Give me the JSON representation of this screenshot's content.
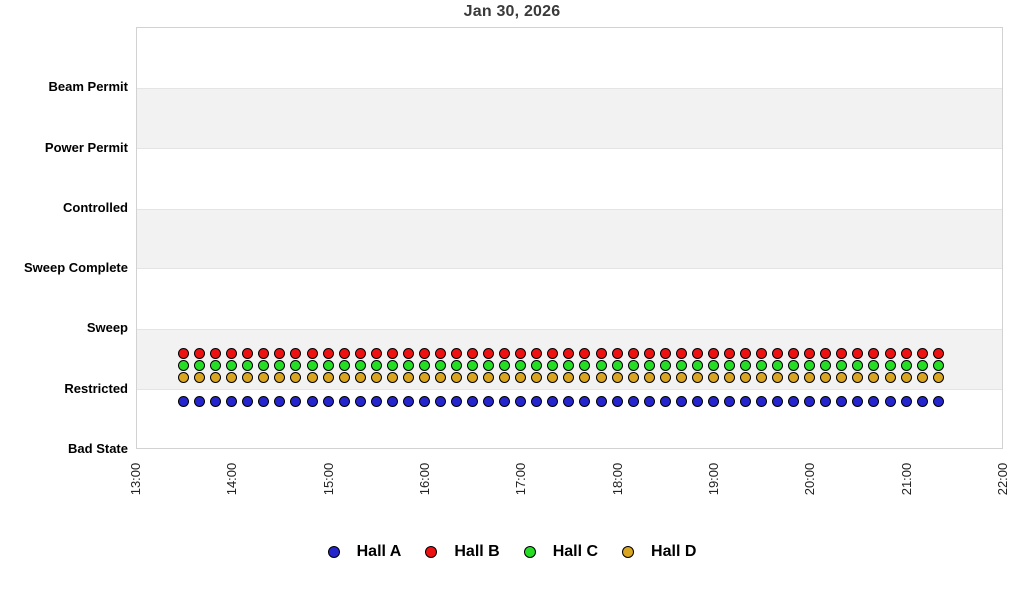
{
  "title": "Jan 30, 2026",
  "chart_data": {
    "type": "scatter",
    "title": "Jan 30, 2026",
    "x_axis": {
      "start": "13:00",
      "end": "22:00",
      "tick_labels": [
        "13:00",
        "14:00",
        "15:00",
        "16:00",
        "17:00",
        "18:00",
        "19:00",
        "20:00",
        "21:00",
        "22:00"
      ],
      "tick_label_rotation_deg": -90,
      "gridlines": false
    },
    "y_axis": {
      "categories": [
        "Bad State",
        "Restricted",
        "Sweep",
        "Sweep Complete",
        "Controlled",
        "Power Permit",
        "Beam Permit"
      ],
      "category_values": [
        0,
        1,
        2,
        3,
        4,
        5,
        6
      ],
      "axis_units_range": [
        0,
        7
      ],
      "shaded_band_value_ranges": [
        [
          1,
          2
        ],
        [
          3,
          4
        ],
        [
          5,
          6
        ]
      ],
      "shaded_band_color": "#f2f2f2"
    },
    "samples": {
      "start_time": "13:29",
      "interval_minutes": 10,
      "count": 48
    },
    "series": [
      {
        "name": "Hall A",
        "color": "#2525cd",
        "state": "Restricted",
        "state_value": 1,
        "plot_offset": -0.2
      },
      {
        "name": "Hall B",
        "color": "#ee1111",
        "state": "Restricted",
        "state_value": 1,
        "plot_offset": 0.6
      },
      {
        "name": "Hall C",
        "color": "#26dd26",
        "state": "Restricted",
        "state_value": 1,
        "plot_offset": 0.4
      },
      {
        "name": "Hall D",
        "color": "#daa520",
        "state": "Restricted",
        "state_value": 1,
        "plot_offset": 0.2
      }
    ],
    "legend": {
      "position": "bottom",
      "items": [
        {
          "label": "Hall A",
          "color": "#2525cd"
        },
        {
          "label": "Hall B",
          "color": "#ee1111"
        },
        {
          "label": "Hall C",
          "color": "#26dd26"
        },
        {
          "label": "Hall D",
          "color": "#daa520"
        }
      ]
    }
  }
}
